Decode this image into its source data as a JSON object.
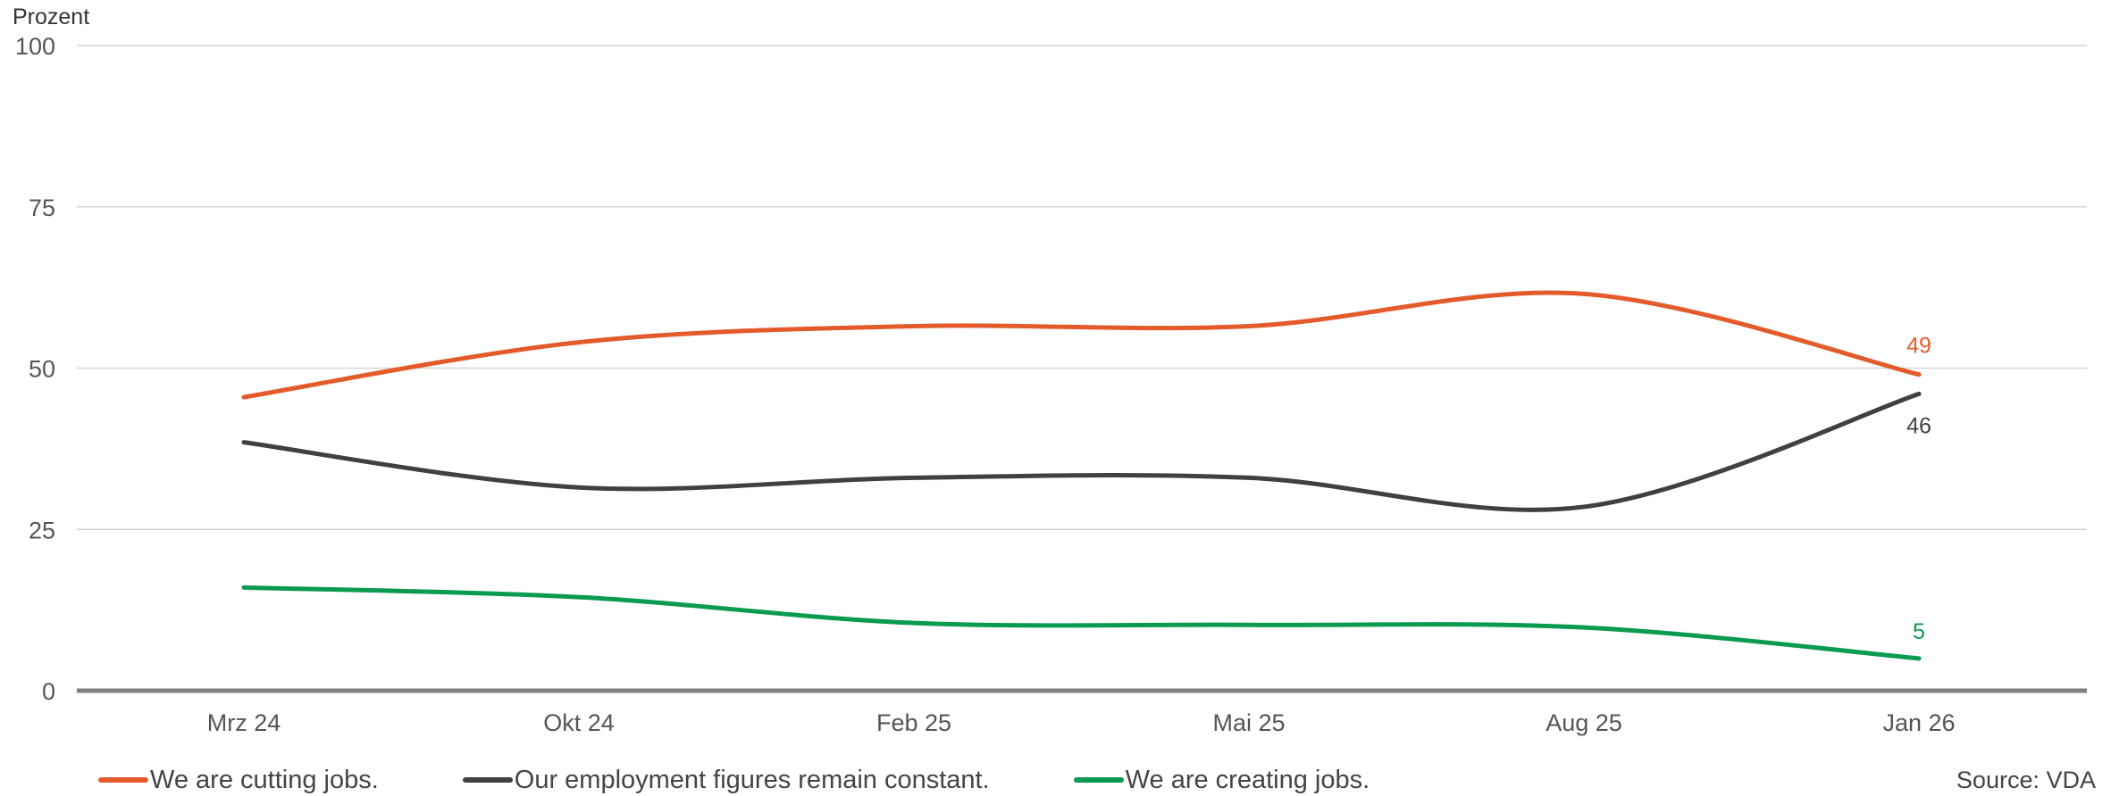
{
  "source_label": "Source: VDA",
  "chart_data": {
    "type": "line",
    "ylabel": "Prozent",
    "ylim": [
      0,
      100
    ],
    "yticks": [
      0,
      25,
      50,
      75,
      100
    ],
    "categories": [
      "Mrz 24",
      "Okt 24",
      "Feb 25",
      "Mai 25",
      "Aug 25",
      "Jan 26"
    ],
    "grid": true,
    "legend": "bottom-left",
    "series": [
      {
        "name": "We are cutting jobs.",
        "color": "#e35b2b",
        "values": [
          45.5,
          54,
          56.5,
          56.5,
          61.5,
          49
        ],
        "end_label": "49"
      },
      {
        "name": "Our employment figures remain constant.",
        "color": "#404040",
        "values": [
          38.5,
          31.5,
          33,
          33,
          28.5,
          46
        ],
        "end_label": "46"
      },
      {
        "name": "We are creating jobs.",
        "color": "#0a9a50",
        "values": [
          16,
          14.5,
          10.5,
          10.2,
          9.8,
          5
        ],
        "end_label": "5"
      }
    ]
  }
}
